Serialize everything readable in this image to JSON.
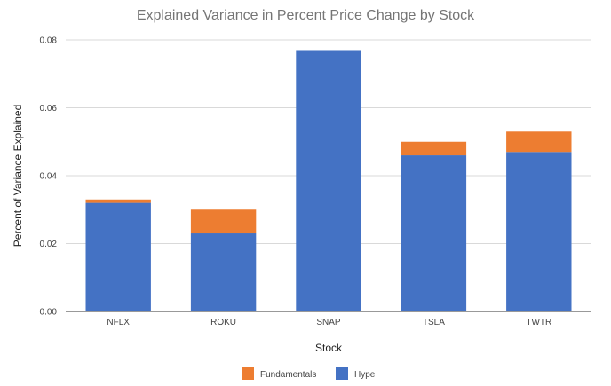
{
  "chart_data": {
    "type": "bar",
    "stacked": true,
    "title": "Explained Variance in Percent Price Change by Stock",
    "xlabel": "Stock",
    "ylabel": "Percent of Variance Explained",
    "categories": [
      "NFLX",
      "ROKU",
      "SNAP",
      "TSLA",
      "TWTR"
    ],
    "series": [
      {
        "name": "Hype",
        "color": "#4472c4",
        "values": [
          0.032,
          0.023,
          0.077,
          0.046,
          0.047
        ]
      },
      {
        "name": "Fundamentals",
        "color": "#ed7d31",
        "values": [
          0.001,
          0.007,
          0.0,
          0.004,
          0.006
        ]
      }
    ],
    "legend_order": [
      "Fundamentals",
      "Hype"
    ],
    "yticks": [
      "0.00",
      "0.02",
      "0.04",
      "0.06",
      "0.08"
    ],
    "ylim": [
      0,
      0.08
    ],
    "grid": true,
    "legend_position": "bottom"
  }
}
